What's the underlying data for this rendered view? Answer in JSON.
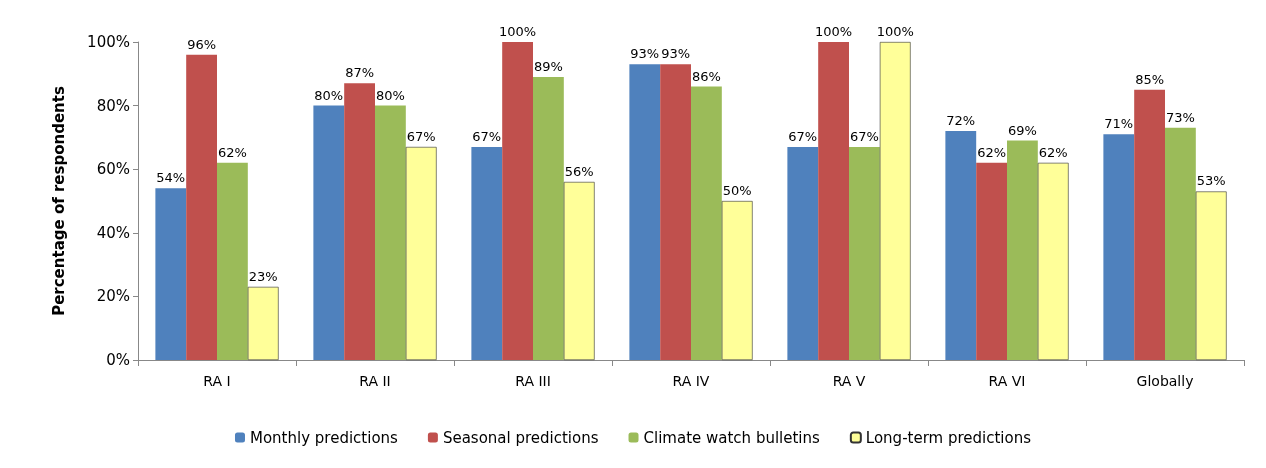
{
  "chart_data": {
    "type": "bar",
    "ylabel": "Percentage of respondents",
    "categories": [
      "RA I",
      "RA II",
      "RA III",
      "RA IV",
      "RA V",
      "RA VI",
      "Globally"
    ],
    "series": [
      {
        "name": "Monthly predictions",
        "color": "#4f81bd",
        "values": [
          54,
          80,
          67,
          93,
          67,
          72,
          71
        ],
        "value_labels": [
          "54%",
          "80%",
          "67%",
          "93%",
          "67%",
          "72%",
          "71%"
        ]
      },
      {
        "name": "Seasonal predictions",
        "color": "#c0504d",
        "values": [
          96,
          87,
          100,
          93,
          100,
          62,
          85
        ],
        "value_labels": [
          "96%",
          "87%",
          "100%",
          "93%",
          "100%",
          "62%",
          "85%"
        ]
      },
      {
        "name": "Climate watch bulletins",
        "color": "#9bbb59",
        "values": [
          62,
          80,
          89,
          86,
          67,
          69,
          73
        ],
        "value_labels": [
          "62%",
          "80%",
          "89%",
          "86%",
          "67%",
          "69%",
          "73%"
        ]
      },
      {
        "name": "Long-term predictions",
        "color": "#ffff99",
        "values": [
          23,
          67,
          56,
          50,
          100,
          62,
          53
        ],
        "value_labels": [
          "23%",
          "67%",
          "56%",
          "50%",
          "100%",
          "62%",
          "53%"
        ]
      }
    ],
    "ylim": [
      0,
      100
    ],
    "yticks": [
      {
        "value": 0,
        "label": "0%"
      },
      {
        "value": 20,
        "label": "20%"
      },
      {
        "value": 40,
        "label": "40%"
      },
      {
        "value": 60,
        "label": "60%"
      },
      {
        "value": 80,
        "label": "80%"
      },
      {
        "value": 100,
        "label": "100%"
      }
    ],
    "grid": false,
    "legend": "bottom"
  }
}
